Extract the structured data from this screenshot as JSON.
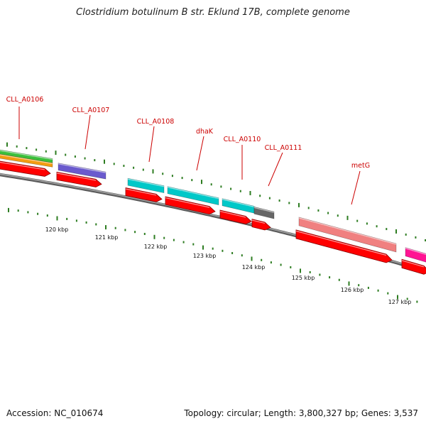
{
  "title": "Clostridium botulinum B str. Eklund 17B, complete genome",
  "footer": {
    "accession": "Accession: NC_010674",
    "summary": "Topology: circular; Length: 3,800,327 bp; Genes: 3,537"
  },
  "gene_labels": [
    "CLL_A0106",
    "CLL_A0107",
    "CLL_A0108",
    "dhaK",
    "CLL_A0110",
    "CLL_A0111",
    "metG"
  ],
  "scale_labels": [
    "120 kbp",
    "121 kbp",
    "122 kbp",
    "123 kbp",
    "124 kbp",
    "125 kbp",
    "126 kbp",
    "127 kbp"
  ],
  "colors": {
    "background": "#ffffff",
    "label_red": "#cc0000",
    "backbone": "#777777",
    "cds_arrow": "#ff0000",
    "tick_green": "#2e7d22",
    "green_feature": "#3cbf3c",
    "orange_feature": "#f39c12",
    "purple_feature": "#6a5acd",
    "cyan_feature": "#00c8c8",
    "gray_feature": "#666666",
    "salmon_feature": "#f08080",
    "magenta_feature": "#ff1493"
  }
}
